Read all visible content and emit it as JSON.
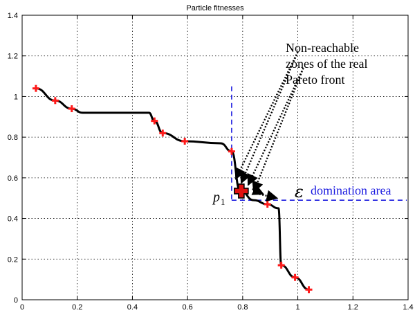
{
  "chart_data": {
    "type": "line",
    "title": "Particle fitnesses",
    "xlabel": "",
    "ylabel": "",
    "xlim": [
      0,
      1.4
    ],
    "ylim": [
      0,
      1.4
    ],
    "grid": true,
    "x_ticks": [
      "0",
      "0.2",
      "0.4",
      "0.6",
      "0.8",
      "1",
      "1.2",
      "1.4"
    ],
    "y_ticks": [
      "0",
      "0.2",
      "0.4",
      "0.6",
      "0.8",
      "1",
      "1.2",
      "1.4"
    ],
    "front_curve": {
      "x": [
        0.05,
        0.12,
        0.18,
        0.22,
        0.46,
        0.48,
        0.51,
        0.59,
        0.72,
        0.76,
        0.79,
        0.84,
        0.89,
        0.93,
        0.94,
        0.99,
        1.04
      ],
      "y": [
        1.04,
        0.98,
        0.94,
        0.92,
        0.92,
        0.88,
        0.82,
        0.78,
        0.77,
        0.73,
        0.54,
        0.49,
        0.47,
        0.45,
        0.17,
        0.11,
        0.05
      ]
    },
    "particles": {
      "x": [
        0.05,
        0.12,
        0.18,
        0.48,
        0.51,
        0.59,
        0.76,
        0.89,
        0.94,
        0.99,
        1.04
      ],
      "y": [
        1.04,
        0.98,
        0.94,
        0.88,
        0.82,
        0.78,
        0.73,
        0.47,
        0.17,
        0.11,
        0.05
      ]
    },
    "p1": {
      "x": 0.795,
      "y": 0.535
    },
    "epsilon_box": {
      "x_start": 0.76,
      "y_start": 0.49,
      "y_top": 1.05,
      "x_end": 1.4
    },
    "annotations": {
      "non_reachable_lines": [
        "Non-reachable",
        "zones of the real",
        "Pareto front"
      ],
      "epsilon_symbol": "ε",
      "domination_label": "domination area",
      "p_label": "p",
      "p_subscript": "1"
    },
    "colors": {
      "curve": "#000000",
      "particle": "#ff1a1a",
      "p1_fill": "#e01010",
      "epsilon_box": "#1c1ce0",
      "domination_text": "#1c1ce0"
    }
  }
}
